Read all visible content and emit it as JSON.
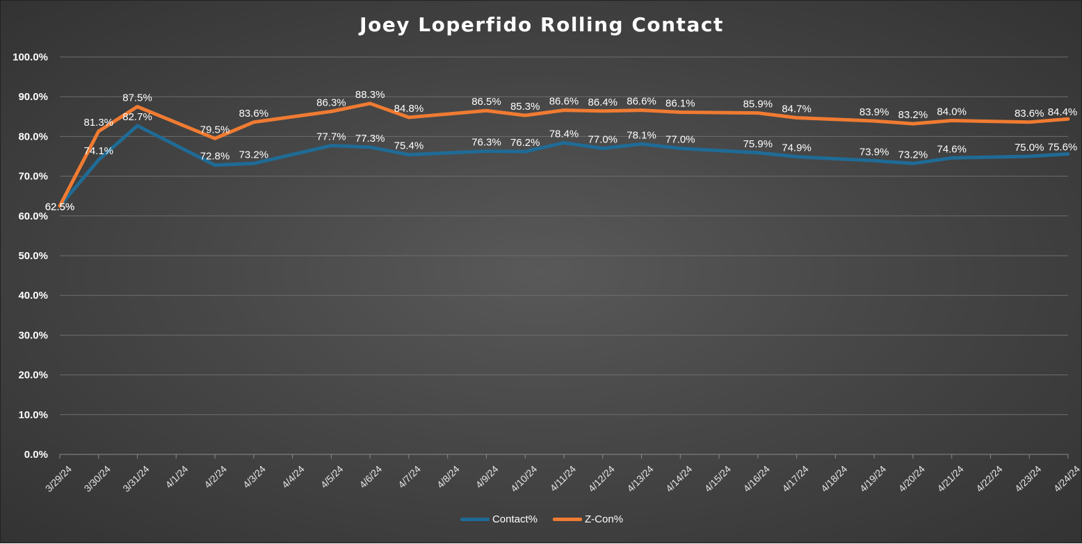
{
  "chart_data": {
    "type": "line",
    "title": "Joey Loperfido Rolling Contact",
    "categories": [
      "3/29/24",
      "3/30/24",
      "3/31/24",
      "4/1/24",
      "4/2/24",
      "4/3/24",
      "4/4/24",
      "4/5/24",
      "4/6/24",
      "4/7/24",
      "4/8/24",
      "4/9/24",
      "4/10/24",
      "4/11/24",
      "4/12/24",
      "4/13/24",
      "4/14/24",
      "4/15/24",
      "4/16/24",
      "4/17/24",
      "4/18/24",
      "4/19/24",
      "4/20/24",
      "4/21/24",
      "4/22/24",
      "4/23/24",
      "4/24/24"
    ],
    "series": [
      {
        "name": "Contact%",
        "color": "#1f6b96",
        "values": [
          62.5,
          74.1,
          82.7,
          null,
          72.8,
          73.2,
          null,
          77.7,
          77.3,
          75.4,
          null,
          76.3,
          76.2,
          78.4,
          77.0,
          78.1,
          77.0,
          null,
          75.9,
          74.9,
          null,
          73.9,
          73.2,
          74.6,
          null,
          75.0,
          75.6
        ],
        "labels": [
          "62.5%",
          "74.1%",
          "82.7%",
          "",
          "72.8%",
          "73.2%",
          "",
          "77.7%",
          "77.3%",
          "75.4%",
          "",
          "76.3%",
          "76.2%",
          "78.4%",
          "77.0%",
          "78.1%",
          "77.0%",
          "",
          "75.9%",
          "74.9%",
          "",
          "73.9%",
          "73.2%",
          "74.6%",
          "",
          "75.0%",
          "75.6%"
        ]
      },
      {
        "name": "Z-Con%",
        "color": "#f07b32",
        "values": [
          62.5,
          81.3,
          87.5,
          null,
          79.5,
          83.6,
          null,
          86.3,
          88.3,
          84.8,
          null,
          86.5,
          85.3,
          86.6,
          86.4,
          86.6,
          86.1,
          null,
          85.9,
          84.7,
          null,
          83.9,
          83.2,
          84.0,
          null,
          83.6,
          84.4
        ],
        "labels": [
          "62.5%",
          "81.3%",
          "87.5%",
          "",
          "79.5%",
          "83.6%",
          "",
          "86.3%",
          "88.3%",
          "84.8%",
          "",
          "86.5%",
          "85.3%",
          "86.6%",
          "86.4%",
          "86.6%",
          "86.1%",
          "",
          "85.9%",
          "84.7%",
          "",
          "83.9%",
          "83.2%",
          "84.0%",
          "",
          "83.6%",
          "84.4%"
        ]
      }
    ],
    "y_ticks": [
      "0.0%",
      "10.0%",
      "20.0%",
      "30.0%",
      "40.0%",
      "50.0%",
      "60.0%",
      "70.0%",
      "80.0%",
      "90.0%",
      "100.0%"
    ],
    "ylim": [
      0,
      100
    ],
    "grid": true,
    "legend_position": "bottom"
  }
}
